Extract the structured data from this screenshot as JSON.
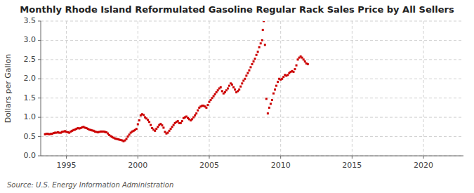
{
  "chart_data": {
    "type": "scatter",
    "title": "Monthly Rhode Island Reformulated Gasoline Regular Rack Sales Price by All Sellers",
    "y_label": "Dollars per Gallon",
    "annotations": [
      "Source: U.S. Energy Information Administration"
    ],
    "color": "#cc0000",
    "marker": "square",
    "grid": true,
    "xlim": [
      1993.2,
      2022.8
    ],
    "ylim": [
      0.0,
      3.5
    ],
    "xticks": [
      1995,
      2000,
      2005,
      2010,
      2015,
      2020
    ],
    "yticks": [
      {
        "value": 0.0,
        "label": "0.0"
      },
      0.5,
      {
        "value": 1.0,
        "label": "1.0"
      },
      1.5,
      {
        "value": 2.0,
        "label": "2.0"
      },
      2.5,
      {
        "value": 3.0,
        "label": "3.0"
      },
      3.5
    ],
    "x": [
      1993.5,
      1993.6,
      1993.7,
      1993.8,
      1993.9,
      1994.0,
      1994.1,
      1994.2,
      1994.3,
      1994.4,
      1994.5,
      1994.6,
      1994.7,
      1994.8,
      1994.9,
      1995.0,
      1995.1,
      1995.2,
      1995.3,
      1995.4,
      1995.5,
      1995.6,
      1995.7,
      1995.8,
      1995.9,
      1996.0,
      1996.1,
      1996.2,
      1996.3,
      1996.4,
      1996.5,
      1996.6,
      1996.7,
      1996.8,
      1996.9,
      1997.0,
      1997.1,
      1997.2,
      1997.3,
      1997.4,
      1997.5,
      1997.6,
      1997.7,
      1997.8,
      1997.9,
      1998.0,
      1998.1,
      1998.2,
      1998.3,
      1998.4,
      1998.5,
      1998.6,
      1998.7,
      1998.8,
      1998.9,
      1999.0,
      1999.1,
      1999.2,
      1999.3,
      1999.4,
      1999.5,
      1999.6,
      1999.7,
      1999.8,
      1999.9,
      2000.0,
      2000.1,
      2000.2,
      2000.3,
      2000.4,
      2000.5,
      2000.6,
      2000.7,
      2000.8,
      2000.9,
      2001.0,
      2001.1,
      2001.2,
      2001.3,
      2001.4,
      2001.5,
      2001.6,
      2001.7,
      2001.8,
      2001.9,
      2002.0,
      2002.1,
      2002.2,
      2002.3,
      2002.4,
      2002.5,
      2002.6,
      2002.7,
      2002.8,
      2002.9,
      2003.0,
      2003.1,
      2003.2,
      2003.3,
      2003.4,
      2003.5,
      2003.6,
      2003.7,
      2003.8,
      2003.9,
      2004.0,
      2004.1,
      2004.2,
      2004.3,
      2004.4,
      2004.5,
      2004.6,
      2004.7,
      2004.8,
      2004.9,
      2005.0,
      2005.1,
      2005.2,
      2005.3,
      2005.4,
      2005.5,
      2005.6,
      2005.7,
      2005.8,
      2005.9,
      2006.0,
      2006.1,
      2006.2,
      2006.3,
      2006.4,
      2006.5,
      2006.6,
      2006.7,
      2006.8,
      2006.9,
      2007.0,
      2007.1,
      2007.2,
      2007.3,
      2007.4,
      2007.5,
      2007.6,
      2007.7,
      2007.8,
      2007.9,
      2008.0,
      2008.1,
      2008.2,
      2008.3,
      2008.4,
      2008.5,
      2008.6,
      2008.7,
      2008.75,
      2008.82,
      2008.9,
      2009.0,
      2009.1,
      2009.2,
      2009.3,
      2009.4,
      2009.5,
      2009.6,
      2009.7,
      2009.8,
      2009.9,
      2010.0,
      2010.1,
      2010.2,
      2010.3,
      2010.4,
      2010.5,
      2010.6,
      2010.7,
      2010.8,
      2010.9,
      2011.0,
      2011.1,
      2011.2,
      2011.3,
      2011.4,
      2011.5,
      2011.6,
      2011.7,
      2011.8,
      2011.9
    ],
    "values": [
      0.56,
      0.57,
      0.57,
      0.56,
      0.57,
      0.57,
      0.59,
      0.6,
      0.6,
      0.61,
      0.6,
      0.6,
      0.62,
      0.63,
      0.64,
      0.62,
      0.61,
      0.6,
      0.63,
      0.65,
      0.67,
      0.68,
      0.7,
      0.72,
      0.71,
      0.72,
      0.74,
      0.75,
      0.73,
      0.72,
      0.7,
      0.68,
      0.67,
      0.66,
      0.65,
      0.63,
      0.62,
      0.61,
      0.62,
      0.63,
      0.63,
      0.63,
      0.62,
      0.61,
      0.58,
      0.54,
      0.51,
      0.49,
      0.47,
      0.45,
      0.44,
      0.43,
      0.42,
      0.41,
      0.4,
      0.38,
      0.4,
      0.44,
      0.5,
      0.55,
      0.6,
      0.63,
      0.65,
      0.67,
      0.7,
      0.82,
      0.92,
      1.05,
      1.08,
      1.06,
      1.0,
      0.97,
      0.93,
      0.88,
      0.8,
      0.72,
      0.68,
      0.65,
      0.7,
      0.75,
      0.8,
      0.83,
      0.79,
      0.73,
      0.62,
      0.58,
      0.6,
      0.65,
      0.7,
      0.75,
      0.8,
      0.85,
      0.88,
      0.9,
      0.85,
      0.85,
      0.9,
      0.98,
      1.0,
      1.02,
      0.98,
      0.95,
      0.92,
      0.95,
      1.0,
      1.05,
      1.1,
      1.18,
      1.25,
      1.28,
      1.3,
      1.3,
      1.28,
      1.25,
      1.32,
      1.4,
      1.45,
      1.5,
      1.55,
      1.6,
      1.65,
      1.7,
      1.75,
      1.78,
      1.68,
      1.62,
      1.65,
      1.7,
      1.75,
      1.82,
      1.88,
      1.85,
      1.78,
      1.72,
      1.65,
      1.68,
      1.72,
      1.8,
      1.88,
      1.95,
      2.0,
      2.08,
      2.15,
      2.22,
      2.3,
      2.38,
      2.45,
      2.52,
      2.62,
      2.7,
      2.82,
      2.92,
      3.0,
      3.27,
      3.5,
      2.88,
      1.48,
      1.1,
      1.25,
      1.35,
      1.45,
      1.62,
      1.72,
      1.82,
      1.92,
      2.0,
      1.98,
      2.0,
      2.05,
      2.1,
      2.08,
      2.1,
      2.15,
      2.18,
      2.2,
      2.18,
      2.25,
      2.35,
      2.5,
      2.55,
      2.58,
      2.55,
      2.5,
      2.45,
      2.4,
      2.38
    ]
  }
}
